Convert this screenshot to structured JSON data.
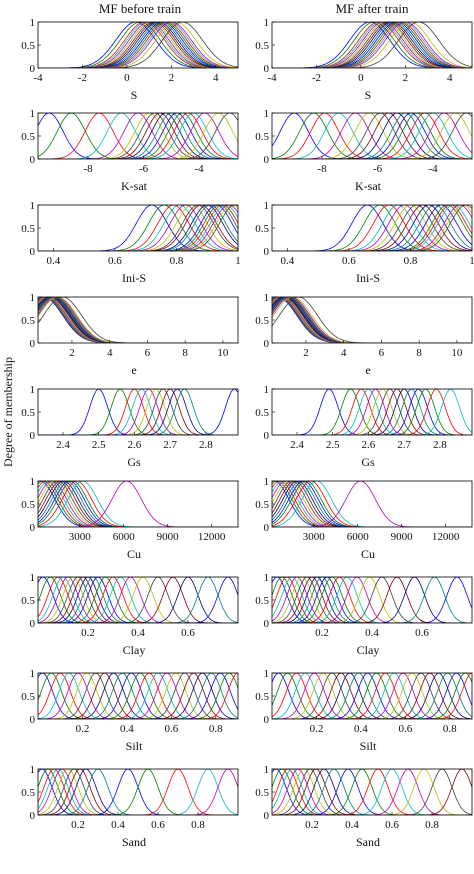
{
  "figure": {
    "ylabel": "Degree of membership",
    "column_titles": [
      "MF before train",
      "MF after train"
    ]
  },
  "chart_data": [
    {
      "type": "line",
      "panel": "S",
      "xlabel": "S",
      "xlim": [
        -4,
        5
      ],
      "ylim": [
        0,
        1
      ],
      "xticks": [
        -4,
        -2,
        0,
        2,
        4
      ],
      "xticklabels": [
        "-4",
        "-2",
        "0",
        "2",
        "4"
      ],
      "yticks": [
        0,
        0.5,
        1
      ],
      "yticklabels": [
        "0",
        "0.5",
        "1"
      ],
      "curve_shape": "gaussian",
      "centers_before": [
        0.4,
        0.6,
        0.8,
        0.9,
        1.0,
        1.1,
        1.2,
        1.3,
        1.4,
        1.5,
        1.6,
        1.7,
        1.8,
        1.9,
        2.0,
        2.2,
        2.5
      ],
      "centers_after": [
        0.4,
        0.6,
        0.8,
        0.9,
        1.0,
        1.1,
        1.2,
        1.3,
        1.4,
        1.5,
        1.6,
        1.7,
        1.8,
        1.9,
        2.0,
        2.2,
        2.6
      ],
      "sigma": 0.9
    },
    {
      "type": "line",
      "panel": "K-sat",
      "xlabel": "K-sat",
      "xlim": [
        -9.8,
        -2.6
      ],
      "ylim": [
        0,
        1
      ],
      "xticks": [
        -8,
        -6,
        -4
      ],
      "xticklabels": [
        "-8",
        "-6",
        "-4"
      ],
      "yticks": [
        0,
        0.5,
        1
      ],
      "yticklabels": [
        "0",
        "0.5",
        "1"
      ],
      "curve_shape": "gaussian",
      "centers_before": [
        -9.4,
        -8.6,
        -7.6,
        -6.8,
        -6.2,
        -5.8,
        -5.6,
        -5.4,
        -5.2,
        -5.0,
        -4.8,
        -4.6,
        -4.4,
        -4.2,
        -3.8,
        -3.3,
        -2.9
      ],
      "centers_after": [
        -9.0,
        -8.3,
        -7.9,
        -7.4,
        -6.8,
        -6.3,
        -5.9,
        -5.6,
        -5.3,
        -5.0,
        -4.8,
        -4.6,
        -4.3,
        -4.0,
        -3.6,
        -3.2,
        -2.8
      ],
      "sigma": 0.5
    },
    {
      "type": "line",
      "panel": "Ini-S",
      "xlabel": "Ini-S",
      "xlim": [
        0.35,
        1.0
      ],
      "ylim": [
        0,
        1
      ],
      "xticks": [
        0.4,
        0.6,
        0.8,
        1
      ],
      "xticklabels": [
        "0.4",
        "0.6",
        "0.8",
        "1"
      ],
      "yticks": [
        0,
        0.5,
        1
      ],
      "yticklabels": [
        "0",
        "0.5",
        "1"
      ],
      "curve_shape": "gaussian",
      "centers_before": [
        0.72,
        0.76,
        0.79,
        0.81,
        0.83,
        0.85,
        0.87,
        0.88,
        0.9,
        0.91,
        0.93,
        0.94,
        0.95,
        0.96,
        0.97,
        0.98,
        0.99
      ],
      "centers_after": [
        0.66,
        0.7,
        0.73,
        0.76,
        0.78,
        0.8,
        0.82,
        0.84,
        0.86,
        0.88,
        0.9,
        0.92,
        0.93,
        0.94,
        0.96,
        0.97,
        0.98
      ],
      "sigma": 0.05
    },
    {
      "type": "line",
      "panel": "e",
      "xlabel": "e",
      "xlim": [
        0.2,
        10.8
      ],
      "ylim": [
        0,
        1
      ],
      "xticks": [
        2,
        4,
        6,
        8,
        10
      ],
      "xticklabels": [
        "2",
        "4",
        "6",
        "8",
        "10"
      ],
      "yticks": [
        0,
        0.5,
        1
      ],
      "yticklabels": [
        "0",
        "0.5",
        "1"
      ],
      "curve_shape": "gaussian",
      "centers_before": [
        0.5,
        0.55,
        0.6,
        0.65,
        0.7,
        0.75,
        0.8,
        0.85,
        0.9,
        0.95,
        1.0,
        1.05,
        1.1,
        1.15,
        1.2,
        1.25,
        1.5
      ],
      "centers_after": [
        0.5,
        0.55,
        0.6,
        0.65,
        0.7,
        0.75,
        0.8,
        0.85,
        0.9,
        0.95,
        1.0,
        1.05,
        1.1,
        1.15,
        1.2,
        1.3,
        1.6
      ],
      "sigma": 1.0
    },
    {
      "type": "line",
      "panel": "Gs",
      "xlabel": "Gs",
      "xlim": [
        2.33,
        2.89
      ],
      "ylim": [
        0,
        1
      ],
      "xticks": [
        2.4,
        2.5,
        2.6,
        2.7,
        2.8
      ],
      "xticklabels": [
        "2.4",
        "2.5",
        "2.6",
        "2.7",
        "2.8"
      ],
      "yticks": [
        0,
        0.5,
        1
      ],
      "yticklabels": [
        "0",
        "0.5",
        "1"
      ],
      "curve_shape": "gaussian",
      "centers_before": [
        2.5,
        2.56,
        2.6,
        2.62,
        2.64,
        2.66,
        2.68,
        2.7,
        2.72,
        2.74,
        2.88
      ],
      "centers_after": [
        2.49,
        2.55,
        2.58,
        2.6,
        2.62,
        2.64,
        2.66,
        2.68,
        2.7,
        2.72,
        2.74,
        2.76,
        2.79,
        2.83
      ],
      "sigma": 0.025
    },
    {
      "type": "line",
      "panel": "Cu",
      "xlabel": "Cu",
      "xlim": [
        150,
        13800
      ],
      "ylim": [
        0,
        1
      ],
      "xticks": [
        3000,
        6000,
        9000,
        12000
      ],
      "xticklabels": [
        "3000",
        "6000",
        "9000",
        "12000"
      ],
      "yticks": [
        0,
        0.5,
        1
      ],
      "yticklabels": [
        "0",
        "0.5",
        "1"
      ],
      "curve_shape": "gaussian",
      "centers_before": [
        300,
        500,
        700,
        900,
        1100,
        1300,
        1500,
        1700,
        1900,
        2100,
        2300,
        2500,
        2800,
        3200,
        6200
      ],
      "centers_after": [
        300,
        500,
        700,
        900,
        1100,
        1300,
        1500,
        1700,
        1900,
        2100,
        2300,
        2500,
        2800,
        3200,
        6200
      ],
      "sigma": 1000
    },
    {
      "type": "line",
      "panel": "Clay",
      "xlabel": "Clay",
      "xlim": [
        0,
        0.8
      ],
      "ylim": [
        0,
        1
      ],
      "xticks": [
        0.2,
        0.4,
        0.6
      ],
      "xticklabels": [
        "0.2",
        "0.4",
        "0.6"
      ],
      "yticks": [
        0,
        0.5,
        1
      ],
      "yticklabels": [
        "0",
        "0.5",
        "1"
      ],
      "curve_shape": "gaussian",
      "centers_before": [
        0.02,
        0.05,
        0.08,
        0.1,
        0.12,
        0.14,
        0.16,
        0.18,
        0.2,
        0.22,
        0.24,
        0.27,
        0.3,
        0.33,
        0.37,
        0.42,
        0.48,
        0.54,
        0.6,
        0.68,
        0.76
      ],
      "centers_after": [
        0.02,
        0.04,
        0.06,
        0.08,
        0.1,
        0.12,
        0.14,
        0.16,
        0.18,
        0.2,
        0.22,
        0.24,
        0.27,
        0.3,
        0.34,
        0.39,
        0.44,
        0.5,
        0.57,
        0.65,
        0.74
      ],
      "sigma": 0.04
    },
    {
      "type": "line",
      "panel": "Silt",
      "xlabel": "Silt",
      "xlim": [
        0,
        0.9
      ],
      "ylim": [
        0,
        1
      ],
      "xticks": [
        0.2,
        0.4,
        0.6,
        0.8
      ],
      "xticklabels": [
        "0.2",
        "0.4",
        "0.6",
        "0.8"
      ],
      "yticks": [
        0,
        0.5,
        1
      ],
      "yticklabels": [
        "0",
        "0.5",
        "1"
      ],
      "curve_shape": "gaussian",
      "centers_before": [
        0.02,
        0.06,
        0.1,
        0.14,
        0.18,
        0.22,
        0.26,
        0.3,
        0.34,
        0.38,
        0.42,
        0.46,
        0.5,
        0.54,
        0.58,
        0.62,
        0.66,
        0.7,
        0.74,
        0.78,
        0.82,
        0.86,
        0.9
      ],
      "centers_after": [
        0.03,
        0.07,
        0.11,
        0.15,
        0.19,
        0.23,
        0.27,
        0.31,
        0.35,
        0.39,
        0.43,
        0.47,
        0.51,
        0.55,
        0.59,
        0.63,
        0.67,
        0.71,
        0.75,
        0.79,
        0.83,
        0.87,
        0.9
      ],
      "sigma": 0.045
    },
    {
      "type": "line",
      "panel": "Sand",
      "xlabel": "Sand",
      "xlim": [
        0,
        1
      ],
      "ylim": [
        0,
        1
      ],
      "xticks": [
        0.2,
        0.4,
        0.6,
        0.8
      ],
      "xticklabels": [
        "0.2",
        "0.4",
        "0.6",
        "0.8"
      ],
      "yticks": [
        0,
        0.5,
        1
      ],
      "yticklabels": [
        "0",
        "0.5",
        "1"
      ],
      "curve_shape": "gaussian",
      "centers_before": [
        0.02,
        0.05,
        0.08,
        0.1,
        0.12,
        0.15,
        0.18,
        0.21,
        0.24,
        0.3,
        0.45,
        0.55,
        0.7,
        0.85,
        0.95
      ],
      "centers_after": [
        0.02,
        0.05,
        0.08,
        0.1,
        0.13,
        0.16,
        0.19,
        0.22,
        0.26,
        0.31,
        0.38,
        0.45,
        0.53,
        0.6,
        0.68,
        0.76,
        0.85,
        0.95
      ],
      "sigma": 0.05
    }
  ],
  "colors": {
    "series": [
      "#0000ff",
      "#008000",
      "#ff0000",
      "#00bfbf",
      "#bf00bf",
      "#bfbf00",
      "#404040",
      "#800000",
      "#000080",
      "#008080"
    ]
  }
}
